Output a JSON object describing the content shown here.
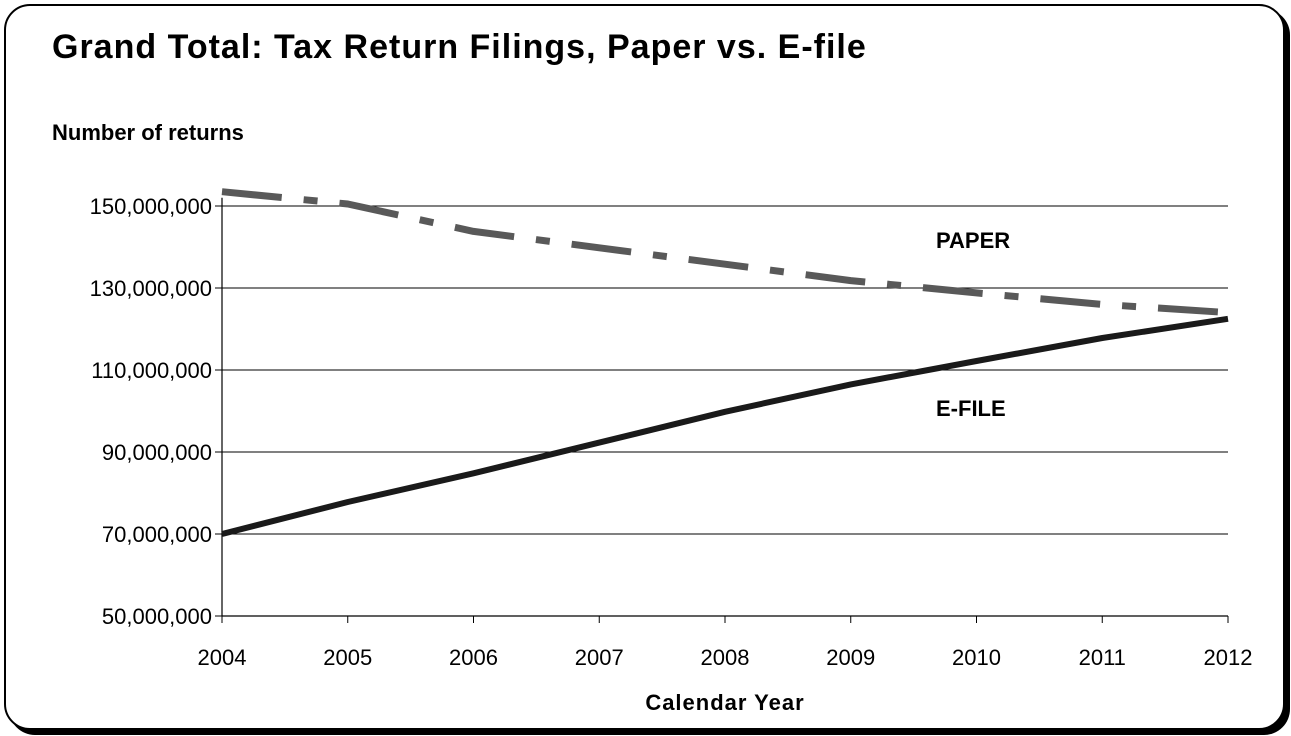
{
  "chart_data": {
    "type": "line",
    "title": "Grand Total:  Tax Return Filings, Paper vs. E-file",
    "ylabel": "Number of returns",
    "xlabel": "Calendar Year",
    "x": [
      "2004",
      "2005",
      "2006",
      "2007",
      "2008",
      "2009",
      "2010",
      "2011",
      "2012"
    ],
    "x_tick_labels": [
      "2004",
      "2005",
      "2006",
      "2007",
      "2008",
      "2009",
      "2010",
      "2011",
      "2012"
    ],
    "y_tick_values": [
      50000000,
      70000000,
      90000000,
      110000000,
      130000000,
      150000000
    ],
    "y_tick_labels": [
      "50,000,000",
      "70,000,000",
      "90,000,000",
      "110,000,000",
      "130,000,000",
      "150,000,000"
    ],
    "ylim": [
      50000000,
      152000000
    ],
    "grid": true,
    "legend": "none (series labelled inline on chart)",
    "series": [
      {
        "name": "PAPER",
        "style": "dash-dot",
        "color": "#595959",
        "values": [
          153500000,
          150500000,
          143800000,
          139800000,
          135800000,
          131800000,
          128800000,
          126000000,
          124000000
        ]
      },
      {
        "name": "E-FILE",
        "style": "solid",
        "color": "#1a1a1a",
        "values": [
          70000000,
          77800000,
          84800000,
          92300000,
          99800000,
          106500000,
          112200000,
          117800000,
          122500000
        ]
      }
    ]
  }
}
